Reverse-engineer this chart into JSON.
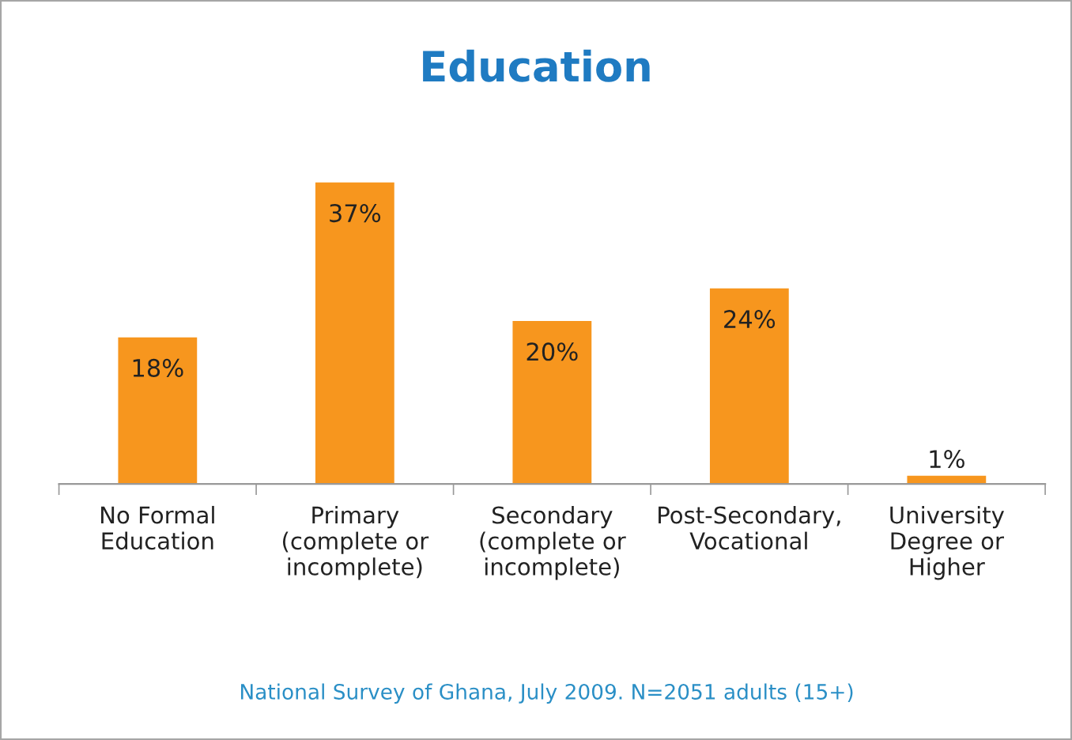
{
  "chart_data": {
    "type": "bar",
    "title": "Education",
    "categories": [
      "No Formal\nEducation",
      "Primary\n(complete or\nincomplete)",
      "Secondary\n(complete or\nincomplete)",
      "Post-Secondary,\nVocational",
      "University\nDegree or\nHigher"
    ],
    "values": [
      18,
      37,
      20,
      24,
      1
    ],
    "value_labels": [
      "18%",
      "37%",
      "20%",
      "24%",
      "1%"
    ],
    "color": "#f7961e",
    "data_labels": true,
    "tick_labels": "x",
    "grid": false,
    "legend": false,
    "annotations": [
      "National Survey of Ghana, July 2009. N=2051 adults (15+)"
    ]
  }
}
